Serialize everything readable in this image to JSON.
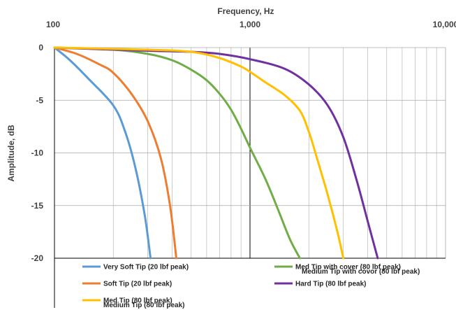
{
  "chart_data": {
    "type": "line",
    "title": "",
    "xlabel": "Frequency, Hz",
    "ylabel": "Amplitude, dB",
    "x_scale": "log",
    "xlim": [
      100,
      10000
    ],
    "ylim": [
      -20,
      0
    ],
    "x_ticks": [
      100,
      1000,
      10000
    ],
    "x_tick_labels": [
      "100",
      "1,000",
      "10,000"
    ],
    "y_ticks": [
      0,
      -5,
      -10,
      -15,
      -20
    ],
    "y_tick_labels": [
      "0",
      "-5",
      "-10",
      "-15",
      "-20"
    ],
    "grid": true,
    "legend_position": "bottom",
    "series": [
      {
        "name": "Very Soft Tip (20 lbf peak)",
        "color": "#5B9BD5",
        "x": [
          100,
          120,
          150,
          200,
          230,
          260,
          290,
          310
        ],
        "y": [
          0,
          -1.2,
          -3.0,
          -5.5,
          -8.0,
          -11.5,
          -16.0,
          -20.0
        ]
      },
      {
        "name": "Soft Tip (20 lbf peak)",
        "color": "#ED7D31",
        "x": [
          100,
          130,
          170,
          200,
          250,
          300,
          350,
          390,
          420
        ],
        "y": [
          0,
          -0.6,
          -1.6,
          -2.4,
          -4.5,
          -7.0,
          -10.5,
          -15.0,
          -20.0
        ]
      },
      {
        "name": "Med Tip with cover (80 lbf peak)",
        "color": "#70AD47",
        "x": [
          100,
          200,
          300,
          400,
          500,
          600,
          700,
          800,
          900,
          1000,
          1200,
          1400,
          1600,
          1800
        ],
        "y": [
          0,
          -0.2,
          -0.6,
          -1.2,
          -2.1,
          -3.1,
          -4.4,
          -5.9,
          -7.7,
          -9.5,
          -12.5,
          -15.5,
          -18.2,
          -20.0
        ]
      },
      {
        "name": "Hard Tip (80 lbf peak)",
        "color": "#7030A0",
        "x": [
          100,
          300,
          500,
          700,
          1000,
          1500,
          2000,
          2500,
          3000,
          3500,
          4000,
          4500
        ],
        "y": [
          0,
          -0.3,
          -0.4,
          -0.6,
          -1.1,
          -2.0,
          -3.5,
          -5.5,
          -8.5,
          -12.5,
          -16.5,
          -20.0
        ]
      },
      {
        "name": "Med Tip (80 lbf peak)",
        "color": "#FFC000",
        "x": [
          100,
          300,
          500,
          700,
          900,
          1000,
          1200,
          1500,
          1800,
          2000,
          2200,
          2500,
          2800,
          3000
        ],
        "y": [
          0,
          -0.2,
          -0.4,
          -1.0,
          -1.8,
          -2.3,
          -3.3,
          -4.5,
          -6.0,
          -8.0,
          -10.5,
          -14.0,
          -17.5,
          -20.0
        ]
      }
    ],
    "legend_overlay_labels": [
      "Medium Tip with covor (80 lbf peak)",
      "Medium Tip (80 lbf peak)"
    ]
  }
}
